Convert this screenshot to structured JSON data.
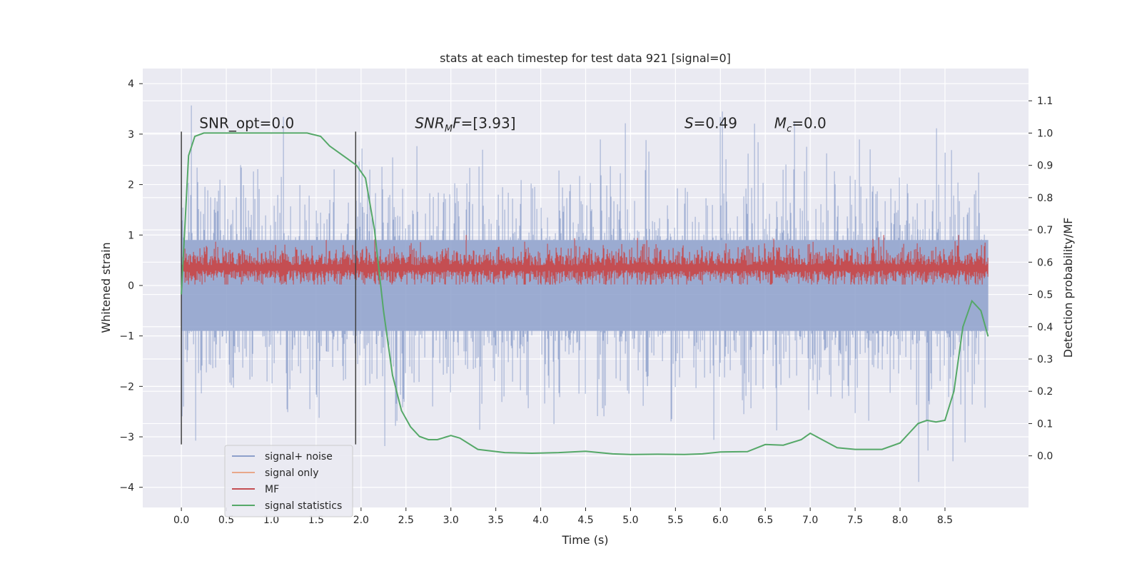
{
  "chart_data": {
    "type": "line",
    "title": "stats at each timestep for test data 921 [signal=0]",
    "xlabel": "Time (s)",
    "ylabel": "Whitened strain",
    "y2label": "Detection probability/MF",
    "xlim": [
      -0.43,
      9.43
    ],
    "ylim": [
      -4.4,
      4.3
    ],
    "y2lim": [
      -0.16,
      1.2
    ],
    "x_ticks": [
      0.0,
      0.5,
      1.0,
      1.5,
      2.0,
      2.5,
      3.0,
      3.5,
      4.0,
      4.5,
      5.0,
      5.5,
      6.0,
      6.5,
      7.0,
      7.5,
      8.0,
      8.5
    ],
    "x_tick_labels": [
      "0.0",
      "0.5",
      "1.0",
      "1.5",
      "2.0",
      "2.5",
      "3.0",
      "3.5",
      "4.0",
      "4.5",
      "5.0",
      "5.5",
      "6.0",
      "6.5",
      "7.0",
      "7.5",
      "8.0",
      "8.5"
    ],
    "y_ticks": [
      -4,
      -3,
      -2,
      -1,
      0,
      1,
      2,
      3,
      4
    ],
    "y_tick_labels": [
      "−4",
      "−3",
      "−2",
      "−1",
      "0",
      "1",
      "2",
      "3",
      "4"
    ],
    "y2_ticks": [
      0.0,
      0.1,
      0.2,
      0.3,
      0.4,
      0.5,
      0.6,
      0.7,
      0.8,
      0.9,
      1.0,
      1.1
    ],
    "y2_tick_labels": [
      "0.0",
      "0.1",
      "0.2",
      "0.3",
      "0.4",
      "0.5",
      "0.6",
      "0.7",
      "0.8",
      "0.9",
      "1.0",
      "1.1"
    ],
    "grid": true,
    "legend_position": "lower-left",
    "series": [
      {
        "name": "signal+ noise",
        "color": "#8da0cb",
        "axis": "left",
        "kind": "noise",
        "x_range": [
          0.0,
          8.98
        ],
        "envelope_rms": 1.0,
        "peak_range": [
          -4.0,
          3.9
        ]
      },
      {
        "name": "signal only",
        "color": "#e8a88a",
        "axis": "left",
        "values": [],
        "x": []
      },
      {
        "name": "MF",
        "color": "#c44e52",
        "axis": "left",
        "kind": "noise",
        "x_range": [
          0.0,
          8.98
        ],
        "baseline": 0.3,
        "peak_range": [
          0.0,
          1.0
        ]
      },
      {
        "name": "signal statistics",
        "color": "#55a868",
        "axis": "right",
        "x": [
          0.0,
          0.08,
          0.15,
          0.25,
          0.4,
          0.6,
          0.8,
          1.0,
          1.2,
          1.4,
          1.55,
          1.65,
          1.75,
          1.85,
          1.95,
          2.05,
          2.15,
          2.25,
          2.35,
          2.45,
          2.55,
          2.65,
          2.75,
          2.85,
          3.0,
          3.1,
          3.3,
          3.6,
          3.9,
          4.2,
          4.5,
          4.8,
          5.0,
          5.3,
          5.6,
          5.8,
          6.0,
          6.3,
          6.5,
          6.7,
          6.9,
          7.0,
          7.1,
          7.3,
          7.5,
          7.8,
          8.0,
          8.1,
          8.2,
          8.3,
          8.4,
          8.5,
          8.6,
          8.7,
          8.8,
          8.9,
          8.98
        ],
        "values": [
          0.5,
          0.93,
          0.99,
          1.0,
          1.0,
          1.0,
          1.0,
          1.0,
          1.0,
          1.0,
          0.99,
          0.96,
          0.94,
          0.92,
          0.9,
          0.86,
          0.7,
          0.45,
          0.25,
          0.14,
          0.09,
          0.06,
          0.05,
          0.05,
          0.063,
          0.055,
          0.02,
          0.01,
          0.008,
          0.01,
          0.014,
          0.006,
          0.004,
          0.005,
          0.004,
          0.006,
          0.012,
          0.013,
          0.035,
          0.033,
          0.05,
          0.07,
          0.055,
          0.025,
          0.02,
          0.02,
          0.04,
          0.07,
          0.1,
          0.11,
          0.105,
          0.11,
          0.2,
          0.4,
          0.48,
          0.45,
          0.37
        ]
      }
    ],
    "markers": [
      {
        "x": 0.0,
        "y_from": -3.15,
        "y_to": 3.05,
        "color": "#404040"
      },
      {
        "x": 1.94,
        "y_from": -3.15,
        "y_to": 3.05,
        "color": "#404040"
      }
    ],
    "annotations": [
      {
        "name": "snr-opt",
        "text": "SNR_opt=0.0",
        "x": 0.2,
        "y": 3.22
      },
      {
        "name": "snr-mf",
        "text": "=[3.93]",
        "main": "SNR",
        "sub": "M",
        "tail": "F",
        "x": 2.6,
        "y": 3.22
      },
      {
        "name": "s-value",
        "main": "S",
        "text": "=0.49",
        "x": 5.6,
        "y": 3.22
      },
      {
        "name": "mc-value",
        "main": "M",
        "sub": "c",
        "text": "=0.0",
        "x": 6.6,
        "y": 3.22
      }
    ]
  }
}
